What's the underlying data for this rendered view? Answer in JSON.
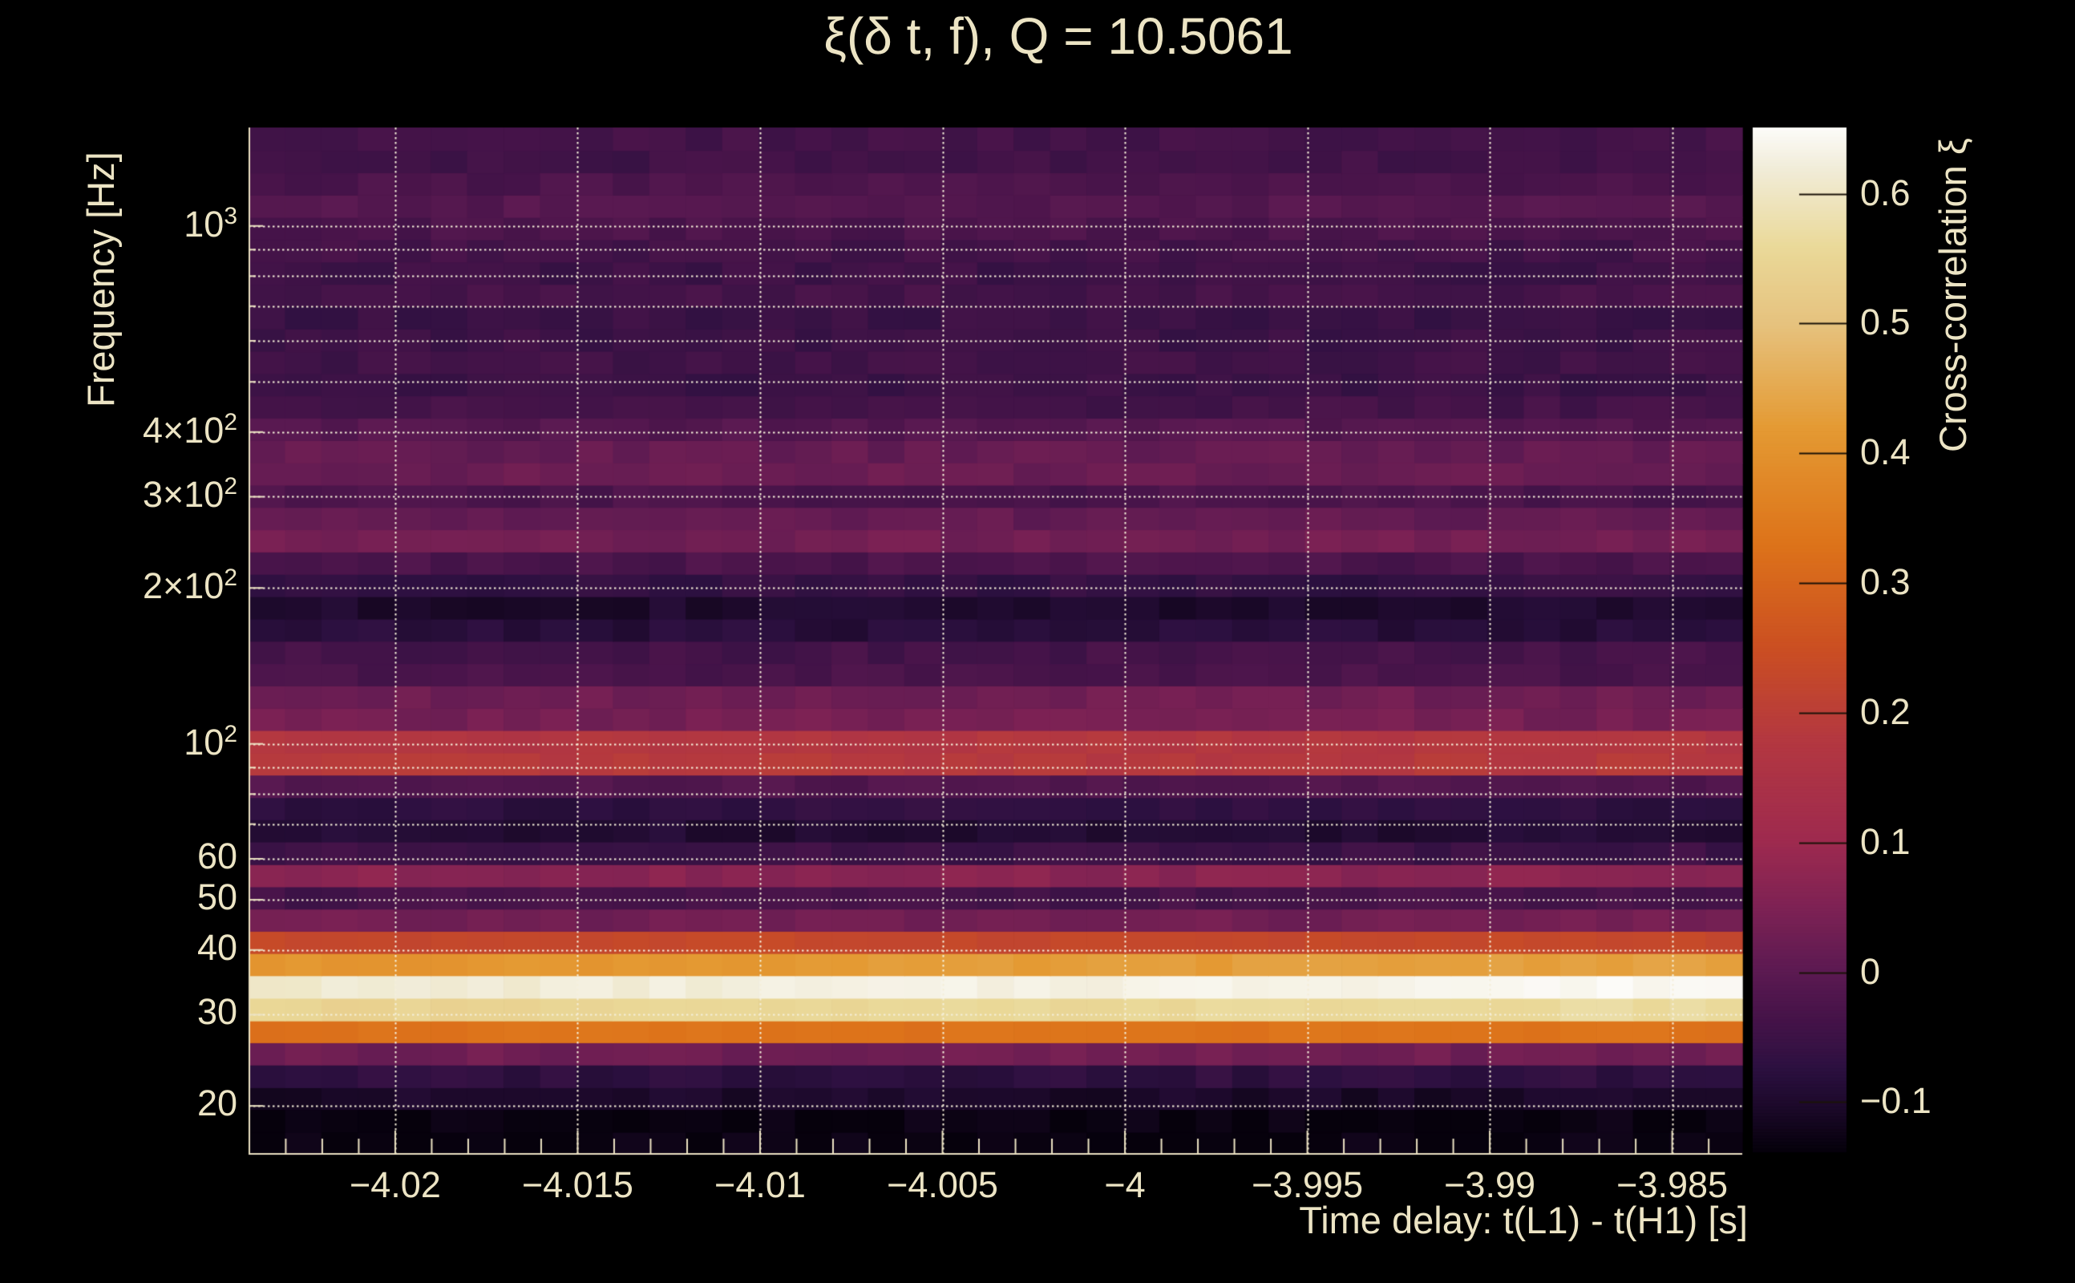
{
  "title": "ξ(δ t, f), Q = 10.5061",
  "colors": {
    "background": "#000000",
    "text": "#ECE4C4",
    "grid": "#F5EFD9",
    "frame": "#E9E0C0",
    "tick": "#ECE3C3",
    "colorbar_tick": "#1A1208"
  },
  "chart_data": {
    "type": "heatmap",
    "title": "ξ(δ t, f), Q = 10.5061",
    "xlabel": "Time delay: t(L1) - t(H1) [s]",
    "ylabel": "Frequency [Hz]",
    "colorbar_label": "Cross-correlation ξ",
    "x_axis": {
      "min": -4.02402,
      "max": -3.98308,
      "major_ticks": [
        {
          "v": -4.02,
          "label": "−4.02"
        },
        {
          "v": -4.015,
          "label": "−4.015"
        },
        {
          "v": -4.01,
          "label": "−4.01"
        },
        {
          "v": -4.005,
          "label": "−4.005"
        },
        {
          "v": -4.0,
          "label": "−4"
        },
        {
          "v": -3.995,
          "label": "−3.995"
        },
        {
          "v": -3.99,
          "label": "−3.99"
        },
        {
          "v": -3.985,
          "label": "−3.985"
        }
      ],
      "minor_step": 0.001,
      "minor_start": -4.023,
      "minor_end": -3.984
    },
    "y_axis": {
      "scale": "log",
      "min": 16.1,
      "max": 1549,
      "labeled_ticks": [
        {
          "f": 1000,
          "base": "10",
          "exp": "3"
        },
        {
          "f": 400,
          "base": "4×10",
          "exp": "2"
        },
        {
          "f": 300,
          "base": "3×10",
          "exp": "2"
        },
        {
          "f": 200,
          "base": "2×10",
          "exp": "2"
        },
        {
          "f": 100,
          "base": "10",
          "exp": "2"
        },
        {
          "f": 60,
          "base": "60"
        },
        {
          "f": 50,
          "base": "50"
        },
        {
          "f": 40,
          "base": "40"
        },
        {
          "f": 30,
          "base": "30"
        },
        {
          "f": 20,
          "base": "20"
        }
      ],
      "minor_tick_freqs": [
        70,
        80,
        90,
        500,
        600,
        700,
        800,
        900
      ],
      "gridline_freqs": [
        20,
        30,
        40,
        50,
        60,
        70,
        80,
        90,
        100,
        200,
        300,
        400,
        500,
        600,
        700,
        800,
        900,
        1000
      ]
    },
    "colorbar": {
      "min": -0.138,
      "max": 0.651,
      "ticks": [
        {
          "v": 0.6,
          "label": "0.6"
        },
        {
          "v": 0.5,
          "label": "0.5"
        },
        {
          "v": 0.4,
          "label": "0.4"
        },
        {
          "v": 0.3,
          "label": "0.3"
        },
        {
          "v": 0.2,
          "label": "0.2"
        },
        {
          "v": 0.1,
          "label": "0.1"
        },
        {
          "v": 0.0,
          "label": "0"
        },
        {
          "v": -0.1,
          "label": "−0.1"
        }
      ]
    },
    "colormap_stops": [
      [
        -0.138,
        "#06010C"
      ],
      [
        -0.105,
        "#1C092A"
      ],
      [
        -0.075,
        "#2C1040"
      ],
      [
        -0.055,
        "#3A1245"
      ],
      [
        -0.03,
        "#49144A"
      ],
      [
        0.0,
        "#5C1A52"
      ],
      [
        0.05,
        "#7E2254"
      ],
      [
        0.1,
        "#9E2A4F"
      ],
      [
        0.18,
        "#B43840"
      ],
      [
        0.25,
        "#CB4F22"
      ],
      [
        0.33,
        "#DD731A"
      ],
      [
        0.42,
        "#E49A33"
      ],
      [
        0.5,
        "#E6C27E"
      ],
      [
        0.56,
        "#EAD999"
      ],
      [
        0.62,
        "#F1ECD8"
      ],
      [
        0.651,
        "#FCFBF8"
      ]
    ],
    "time_bins": {
      "start": -4.024,
      "width_s": 0.001,
      "count": 41
    },
    "noise_amplitude": 0.014,
    "noise_amplitude_bright": 0.009,
    "rows": [
      {
        "lo": 16.1,
        "hi": 17.8,
        "v": -0.135
      },
      {
        "lo": 17.8,
        "hi": 19.7,
        "v": -0.135
      },
      {
        "lo": 19.7,
        "hi": 21.7,
        "v": -0.105
      },
      {
        "lo": 21.7,
        "hi": 24.0,
        "v": -0.072
      },
      {
        "lo": 24.0,
        "hi": 26.5,
        "v": 0.028
      },
      {
        "lo": 26.5,
        "hi": 29.2,
        "v": 0.33
      },
      {
        "lo": 29.2,
        "hi": 32.3,
        "v": 0.545,
        "v2": 0.565
      },
      {
        "lo": 32.3,
        "hi": 35.7,
        "v": 0.612,
        "v2": 0.648
      },
      {
        "lo": 35.7,
        "hi": 39.4,
        "v": 0.408,
        "v2": 0.438
      },
      {
        "lo": 39.4,
        "hi": 43.5,
        "v": 0.228
      },
      {
        "lo": 43.5,
        "hi": 48.0,
        "v": 0.03
      },
      {
        "lo": 48.0,
        "hi": 53.0,
        "v": -0.038
      },
      {
        "lo": 53.0,
        "hi": 58.5,
        "v": 0.068
      },
      {
        "lo": 58.5,
        "hi": 64.7,
        "v": -0.05
      },
      {
        "lo": 64.7,
        "hi": 71.4,
        "v": -0.092
      },
      {
        "lo": 71.4,
        "hi": 78.8,
        "v": -0.072
      },
      {
        "lo": 78.8,
        "hi": 87.1,
        "v": -0.018
      },
      {
        "lo": 87.1,
        "hi": 96.1,
        "v": 0.182
      },
      {
        "lo": 96.1,
        "hi": 106.2,
        "v": 0.172
      },
      {
        "lo": 106.2,
        "hi": 117.2,
        "v": 0.035
      },
      {
        "lo": 117.2,
        "hi": 129.5,
        "v": 0.028
      },
      {
        "lo": 129.5,
        "hi": 143.0,
        "v": -0.03
      },
      {
        "lo": 143.0,
        "hi": 157.9,
        "v": -0.038
      },
      {
        "lo": 157.9,
        "hi": 174.3,
        "v": -0.082
      },
      {
        "lo": 174.3,
        "hi": 192.5,
        "v": -0.1
      },
      {
        "lo": 192.5,
        "hi": 212.6,
        "v": -0.065
      },
      {
        "lo": 212.6,
        "hi": 234.8,
        "v": -0.028
      },
      {
        "lo": 234.8,
        "hi": 259.3,
        "v": 0.032
      },
      {
        "lo": 259.3,
        "hi": 286.3,
        "v": 0.01
      },
      {
        "lo": 286.3,
        "hi": 316.1,
        "v": -0.028
      },
      {
        "lo": 316.1,
        "hi": 349.1,
        "v": 0.02
      },
      {
        "lo": 349.1,
        "hi": 385.5,
        "v": 0.012
      },
      {
        "lo": 385.5,
        "hi": 425.7,
        "v": -0.012
      },
      {
        "lo": 425.7,
        "hi": 470.1,
        "v": -0.04
      },
      {
        "lo": 470.1,
        "hi": 519.1,
        "v": -0.055
      },
      {
        "lo": 519.1,
        "hi": 573.2,
        "v": -0.045
      },
      {
        "lo": 573.2,
        "hi": 633.0,
        "v": -0.052
      },
      {
        "lo": 633.0,
        "hi": 699.0,
        "v": -0.055
      },
      {
        "lo": 699.0,
        "hi": 771.8,
        "v": -0.038
      },
      {
        "lo": 771.8,
        "hi": 852.3,
        "v": -0.05
      },
      {
        "lo": 852.3,
        "hi": 941.2,
        "v": -0.042
      },
      {
        "lo": 941.2,
        "hi": 1039.3,
        "v": -0.028
      },
      {
        "lo": 1039.3,
        "hi": 1147.6,
        "v": -0.012
      },
      {
        "lo": 1147.6,
        "hi": 1267.3,
        "v": -0.028
      },
      {
        "lo": 1267.3,
        "hi": 1399.4,
        "v": -0.045
      },
      {
        "lo": 1399.4,
        "hi": 1549.0,
        "v": -0.04
      }
    ]
  }
}
